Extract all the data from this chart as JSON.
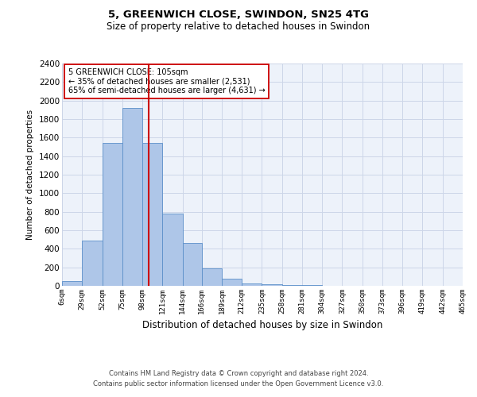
{
  "title_line1": "5, GREENWICH CLOSE, SWINDON, SN25 4TG",
  "title_line2": "Size of property relative to detached houses in Swindon",
  "xlabel": "Distribution of detached houses by size in Swindon",
  "ylabel": "Number of detached properties",
  "footer_line1": "Contains HM Land Registry data © Crown copyright and database right 2024.",
  "footer_line2": "Contains public sector information licensed under the Open Government Licence v3.0.",
  "annotation_title": "5 GREENWICH CLOSE: 105sqm",
  "annotation_line1": "← 35% of detached houses are smaller (2,531)",
  "annotation_line2": "65% of semi-detached houses are larger (4,631) →",
  "property_size": 105,
  "bar_color": "#aec6e8",
  "bar_edge_color": "#5b8fc9",
  "vline_color": "#cc0000",
  "grid_color": "#ccd6e8",
  "background_color": "#edf2fa",
  "bins": [
    6,
    29,
    52,
    75,
    98,
    121,
    144,
    166,
    189,
    212,
    235,
    258,
    281,
    304,
    327,
    350,
    373,
    396,
    419,
    442,
    465
  ],
  "bin_labels": [
    "6sqm",
    "29sqm",
    "52sqm",
    "75sqm",
    "98sqm",
    "121sqm",
    "144sqm",
    "166sqm",
    "189sqm",
    "212sqm",
    "235sqm",
    "258sqm",
    "281sqm",
    "304sqm",
    "327sqm",
    "350sqm",
    "373sqm",
    "396sqm",
    "419sqm",
    "442sqm",
    "465sqm"
  ],
  "values": [
    50,
    490,
    1540,
    1920,
    1540,
    780,
    460,
    185,
    80,
    30,
    15,
    10,
    5,
    0,
    0,
    0,
    0,
    0,
    0,
    0
  ],
  "ylim": [
    0,
    2400
  ],
  "yticks": [
    0,
    200,
    400,
    600,
    800,
    1000,
    1200,
    1400,
    1600,
    1800,
    2000,
    2200,
    2400
  ]
}
